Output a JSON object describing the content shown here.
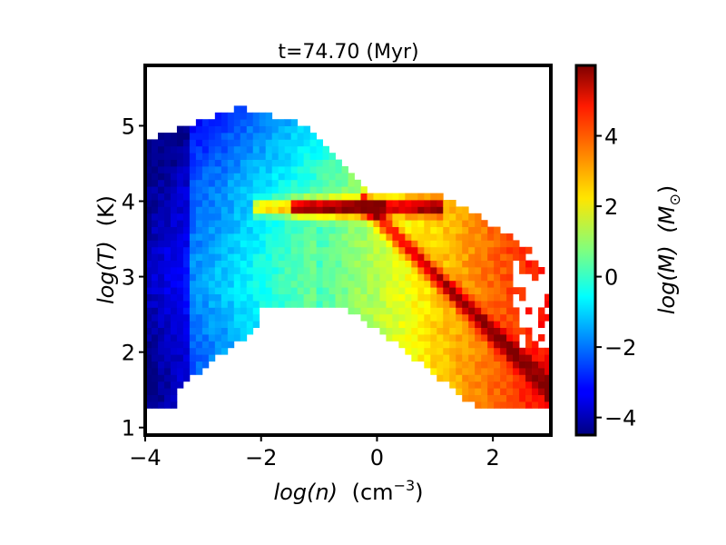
{
  "chart_data": {
    "type": "heatmap",
    "title": "t=74.70 (Myr)",
    "xlabel": {
      "var": "log(n)",
      "unit_base": "(cm",
      "unit_exp": "−3",
      "unit_close": ")"
    },
    "ylabel": {
      "var": "log(T)",
      "unit": "(K)"
    },
    "colorbar_label": {
      "var": "log(M)",
      "unit_open": "(M",
      "unit_sub": "⊙",
      "unit_close": ")"
    },
    "xlim": [
      -4,
      3
    ],
    "ylim": [
      0.9,
      5.8
    ],
    "clim": [
      -4.5,
      6
    ],
    "x_ticks": [
      {
        "v": -4,
        "label": "−4"
      },
      {
        "v": -2,
        "label": "−2"
      },
      {
        "v": 0,
        "label": "0"
      },
      {
        "v": 2,
        "label": "2"
      }
    ],
    "y_ticks": [
      {
        "v": 1,
        "label": "1"
      },
      {
        "v": 2,
        "label": "2"
      },
      {
        "v": 3,
        "label": "3"
      },
      {
        "v": 4,
        "label": "4"
      },
      {
        "v": 5,
        "label": "5"
      }
    ],
    "c_ticks": [
      {
        "v": -4,
        "label": "−4"
      },
      {
        "v": -2,
        "label": "−2"
      },
      {
        "v": 0,
        "label": "0"
      },
      {
        "v": 2,
        "label": "2"
      },
      {
        "v": 4,
        "label": "4"
      }
    ],
    "colormap": "jet",
    "grid": false,
    "description_features": [
      "hot diffuse gas log(T) 4.5–5.5 at log(n) −3.8 to −1 with mass −4 to −1",
      "peak ridge near log(T)=3.9 from log(n) −2 to 0 with mass up to ~6",
      "cooling track descending from (0,3.8) to (3,1.5) with mass ~5",
      "warm gas band log(T) 2.5–4 at log(n) −4 to 0"
    ]
  }
}
